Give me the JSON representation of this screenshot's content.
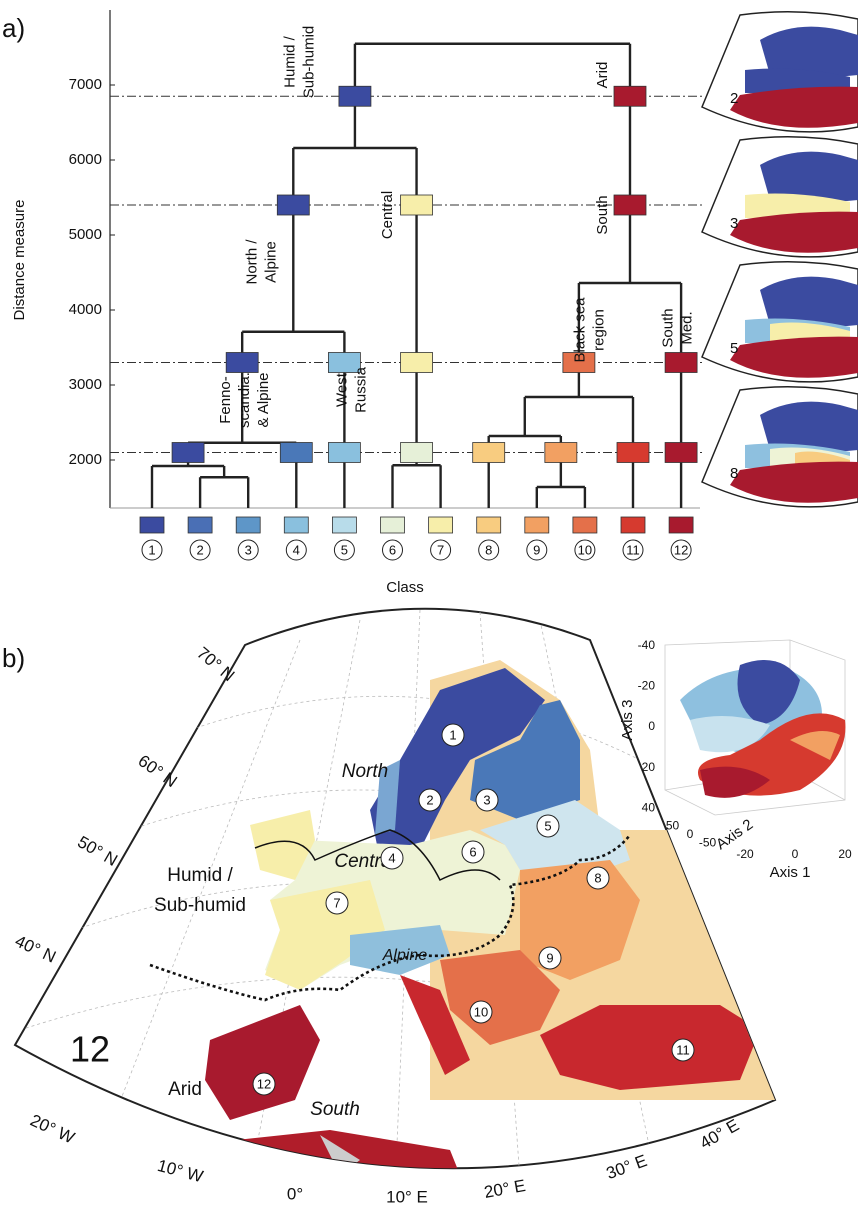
{
  "figure": {
    "panel_a_label": "a)",
    "panel_b_label": "b)"
  },
  "chart_data": {
    "type": "dendrogram",
    "ylabel": "Distance measure",
    "xlabel": "Class",
    "ylim": [
      1360,
      8000
    ],
    "yticks": [
      2000,
      3000,
      4000,
      5000,
      6000,
      7000
    ],
    "classes": {
      "labels": [
        "1",
        "2",
        "3",
        "4",
        "5",
        "6",
        "7",
        "8",
        "9",
        "10",
        "11",
        "12"
      ],
      "colors": [
        "#3b4ba0",
        "#4a6fb5",
        "#5e96c8",
        "#8ac0de",
        "#b8dcea",
        "#e6f0d8",
        "#f7eeaa",
        "#f8cc80",
        "#f2a062",
        "#e4704a",
        "#d63a2f",
        "#a81a2e"
      ]
    },
    "merges": [
      {
        "children": [
          1,
          2
        ],
        "height": 1770
      },
      {
        "children": [
          0,
          12
        ],
        "height": 1920
      },
      {
        "children": [
          13,
          3
        ],
        "height": 2230
      },
      {
        "children": [
          14,
          4
        ],
        "height": 3710
      },
      {
        "children": [
          5,
          6
        ],
        "height": 1930
      },
      {
        "children": [
          15,
          16
        ],
        "height": 6160
      },
      {
        "children": [
          8,
          9
        ],
        "height": 1640
      },
      {
        "children": [
          7,
          18
        ],
        "height": 2320
      },
      {
        "children": [
          19,
          10
        ],
        "height": 2840
      },
      {
        "children": [
          20,
          11
        ],
        "height": 4360
      },
      {
        "children": [
          17,
          21
        ],
        "height": 7550
      }
    ],
    "cut_levels": [
      2100,
      3300,
      5400,
      6850
    ],
    "boxes": [
      {
        "node": 13,
        "cut": 0,
        "color": "#3b4ba0"
      },
      {
        "node": 3,
        "cut": 0,
        "color": "#4a78b8"
      },
      {
        "node": 4,
        "cut": 0,
        "color": "#8ac0de"
      },
      {
        "node": 16,
        "cut": 0,
        "color": "#e6f0d8"
      },
      {
        "node": 7,
        "cut": 0,
        "color": "#f8cc80"
      },
      {
        "node": 18,
        "cut": 0,
        "color": "#f2a062"
      },
      {
        "node": 10,
        "cut": 0,
        "color": "#d63a2f"
      },
      {
        "node": 11,
        "cut": 0,
        "color": "#a81a2e"
      },
      {
        "node": 14,
        "cut": 1,
        "color": "#3b4ba0"
      },
      {
        "node": 4,
        "cut": 1,
        "color": "#8ac0de"
      },
      {
        "node": 16,
        "cut": 1,
        "color": "#f7eeaa"
      },
      {
        "node": 20,
        "cut": 1,
        "color": "#e4704a"
      },
      {
        "node": 11,
        "cut": 1,
        "color": "#a81a2e"
      },
      {
        "node": 15,
        "cut": 2,
        "color": "#3b4ba0"
      },
      {
        "node": 16,
        "cut": 2,
        "color": "#f7eeaa"
      },
      {
        "node": 21,
        "cut": 2,
        "color": "#a81a2e"
      },
      {
        "node": 17,
        "cut": 3,
        "color": "#3b4ba0"
      },
      {
        "node": 21,
        "cut": 3,
        "color": "#a81a2e"
      }
    ],
    "branch_labels": [
      {
        "lines": [
          "Humid /",
          "Sub-humid"
        ]
      },
      {
        "lines": [
          "Arid"
        ]
      },
      {
        "lines": [
          "Central"
        ]
      },
      {
        "lines": [
          "South"
        ]
      },
      {
        "lines": [
          "North /",
          "Alpine"
        ]
      },
      {
        "lines": [
          "Black sea",
          "region"
        ]
      },
      {
        "lines": [
          "South",
          "Med."
        ]
      },
      {
        "lines": [
          "Fenno-",
          "scandia.",
          "& Alpine"
        ]
      },
      {
        "lines": [
          "West",
          "Russia"
        ]
      }
    ]
  },
  "insets": {
    "labels": [
      "2",
      "3",
      "5",
      "8"
    ]
  },
  "map": {
    "latitudes": [
      "70° N",
      "60° N",
      "50° N",
      "40° N"
    ],
    "longitudes": [
      "20° W",
      "10° W",
      "0°",
      "10° E",
      "20° E",
      "30° E",
      "40° E"
    ],
    "regions": [
      "North",
      "Central",
      "Alpine",
      "South"
    ],
    "humid_lines": [
      "Humid /",
      "Sub-humid"
    ],
    "arid": "Arid",
    "class_count_label": "12"
  },
  "scatter_inset": {
    "axis3_label": "Axis 3",
    "axis1_label": "Axis 1",
    "axis2_label": "Axis 2",
    "axis3_ticks": [
      -40,
      -20,
      0,
      20,
      40
    ],
    "axis1_ticks": [
      -20,
      0,
      20
    ],
    "axis2_ticks": [
      50,
      0,
      -50
    ]
  }
}
